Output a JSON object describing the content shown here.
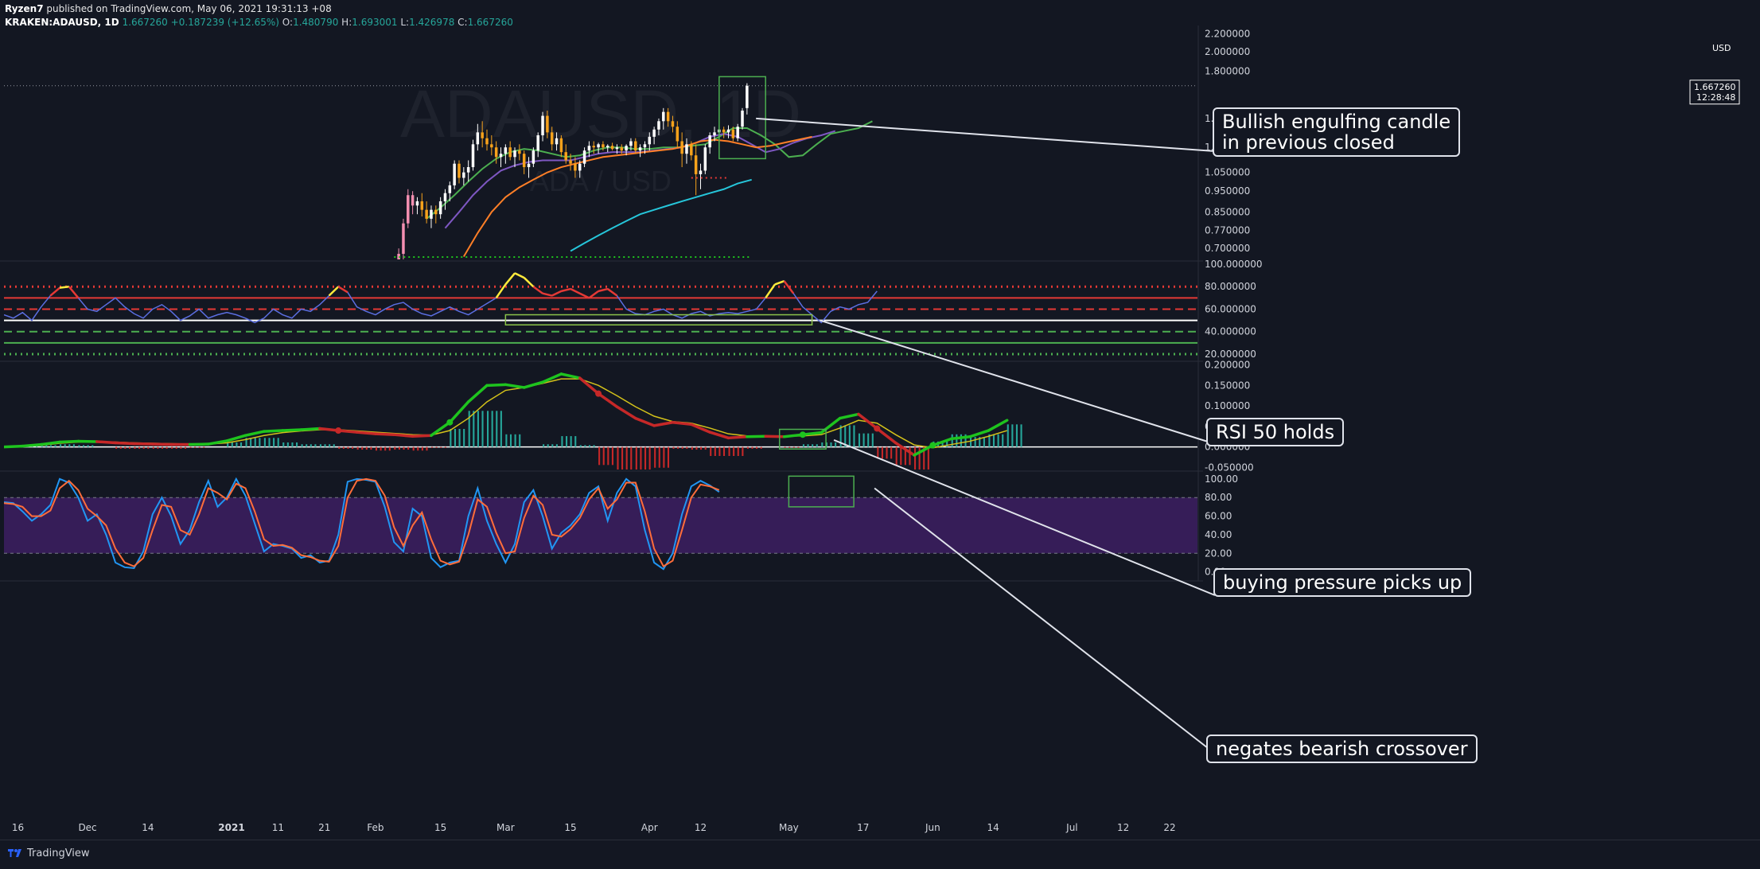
{
  "header": {
    "publisher": "Ryzen7",
    "published_text": "published on TradingView.com, May 06, 2021 19:31:13 +08",
    "symbol": "KRAKEN:ADAUSD, 1D",
    "last": "1.667260",
    "change": "+0.187239 (+12.65%)",
    "o_label": "O:",
    "o_value": "1.480790",
    "h_label": "H:",
    "h_value": "1.693001",
    "l_label": "L:",
    "l_value": "1.426978",
    "c_label": "C:",
    "c_value": "1.667260"
  },
  "watermark": {
    "main": "ADAUSD, 1D",
    "sub": "ADA / USD"
  },
  "price_axis": {
    "currency": "USD",
    "ticks": [
      "2.200000",
      "2.000000",
      "1.800000",
      "1.400000",
      "1.200000",
      "1.050000",
      "0.950000",
      "0.850000",
      "0.770000",
      "0.700000"
    ],
    "last_price_label": "1.667260",
    "countdown": "12:28:48"
  },
  "rsi_axis": {
    "ticks": [
      "100.000000",
      "80.000000",
      "60.000000",
      "40.000000",
      "20.000000"
    ]
  },
  "macd_axis": {
    "ticks": [
      "0.200000",
      "0.150000",
      "0.100000",
      "0.050000",
      "0.000000",
      "-0.050000"
    ]
  },
  "stoch_axis": {
    "ticks": [
      "100.00",
      "80.00",
      "60.00",
      "40.00",
      "20.00",
      "0.00"
    ]
  },
  "time_axis": {
    "ticks": [
      "16",
      "Dec",
      "14",
      "2021",
      "11",
      "21",
      "Feb",
      "15",
      "Mar",
      "15",
      "Apr",
      "12",
      "May",
      "17",
      "Jun",
      "14",
      "Jul",
      "12",
      "22"
    ]
  },
  "annotations": {
    "engulfing": [
      "Bullish engulfing candle",
      "in previous closed"
    ],
    "rsi": "RSI 50 holds",
    "macd": "buying pressure picks up",
    "stoch": "negates bearish crossover"
  },
  "footer": {
    "brand": "TradingView"
  },
  "colors": {
    "background": "#131722",
    "bull": "#ffffff",
    "bear": "#f7a21b",
    "ema_green": "#4caf50",
    "ema_purple": "#7e57c2",
    "ema_orange": "#ff7f27",
    "ema_cyan": "#26c6da",
    "rsi_line": "#5b6ee1",
    "macd_line": "#1ec41e",
    "signal_line": "#d4c21a",
    "stoch_k": "#2196f3",
    "stoch_d": "#ff6d3a",
    "stoch_band": "#3b1e5e"
  },
  "chart_data": [
    {
      "type": "candlestick",
      "title": "ADAUSD, 1D",
      "xlabel": "",
      "ylabel": "USD",
      "scale": "log",
      "ylim": [
        0.66,
        2.3
      ],
      "x_range": [
        "2020-11-13",
        "2021-07-28"
      ],
      "ohlc_daily_from": "2021-02-05",
      "ohlc": [
        [
          0.58,
          0.66,
          0.56,
          0.62
        ],
        [
          0.62,
          0.7,
          0.6,
          0.68
        ],
        [
          0.68,
          0.82,
          0.66,
          0.8
        ],
        [
          0.8,
          0.96,
          0.78,
          0.93
        ],
        [
          0.93,
          0.95,
          0.84,
          0.88
        ],
        [
          0.88,
          0.92,
          0.84,
          0.9
        ],
        [
          0.9,
          0.94,
          0.83,
          0.86
        ],
        [
          0.86,
          0.9,
          0.8,
          0.82
        ],
        [
          0.82,
          0.88,
          0.78,
          0.86
        ],
        [
          0.86,
          0.88,
          0.8,
          0.84
        ],
        [
          0.84,
          0.92,
          0.82,
          0.9
        ],
        [
          0.9,
          0.96,
          0.86,
          0.94
        ],
        [
          0.94,
          1.0,
          0.9,
          0.98
        ],
        [
          0.98,
          1.12,
          0.96,
          1.1
        ],
        [
          1.1,
          1.12,
          0.99,
          1.02
        ],
        [
          1.02,
          1.08,
          0.98,
          1.05
        ],
        [
          1.05,
          1.12,
          1.0,
          1.08
        ],
        [
          1.08,
          1.25,
          1.06,
          1.22
        ],
        [
          1.22,
          1.36,
          1.18,
          1.3
        ],
        [
          1.3,
          1.38,
          1.2,
          1.26
        ],
        [
          1.26,
          1.32,
          1.18,
          1.22
        ],
        [
          1.22,
          1.28,
          1.15,
          1.2
        ],
        [
          1.2,
          1.24,
          1.1,
          1.14
        ],
        [
          1.14,
          1.2,
          1.08,
          1.16
        ],
        [
          1.16,
          1.22,
          1.1,
          1.2
        ],
        [
          1.2,
          1.24,
          1.12,
          1.14
        ],
        [
          1.14,
          1.2,
          1.08,
          1.18
        ],
        [
          1.18,
          1.22,
          1.12,
          1.16
        ],
        [
          1.16,
          1.18,
          1.04,
          1.08
        ],
        [
          1.08,
          1.14,
          1.02,
          1.1
        ],
        [
          1.1,
          1.2,
          1.08,
          1.18
        ],
        [
          1.18,
          1.3,
          1.14,
          1.28
        ],
        [
          1.28,
          1.45,
          1.24,
          1.42
        ],
        [
          1.42,
          1.46,
          1.26,
          1.3
        ],
        [
          1.3,
          1.34,
          1.18,
          1.22
        ],
        [
          1.22,
          1.3,
          1.18,
          1.26
        ],
        [
          1.26,
          1.28,
          1.14,
          1.17
        ],
        [
          1.17,
          1.22,
          1.1,
          1.12
        ],
        [
          1.12,
          1.16,
          1.06,
          1.1
        ],
        [
          1.1,
          1.14,
          1.02,
          1.06
        ],
        [
          1.06,
          1.12,
          1.02,
          1.1
        ],
        [
          1.1,
          1.2,
          1.08,
          1.18
        ],
        [
          1.18,
          1.24,
          1.14,
          1.21
        ],
        [
          1.21,
          1.24,
          1.16,
          1.2
        ],
        [
          1.2,
          1.23,
          1.16,
          1.22
        ],
        [
          1.22,
          1.24,
          1.18,
          1.2
        ],
        [
          1.2,
          1.22,
          1.17,
          1.21
        ],
        [
          1.21,
          1.23,
          1.18,
          1.19
        ],
        [
          1.19,
          1.22,
          1.16,
          1.2
        ],
        [
          1.2,
          1.22,
          1.16,
          1.18
        ],
        [
          1.18,
          1.22,
          1.15,
          1.21
        ],
        [
          1.21,
          1.26,
          1.18,
          1.24
        ],
        [
          1.24,
          1.26,
          1.16,
          1.18
        ],
        [
          1.18,
          1.22,
          1.14,
          1.2
        ],
        [
          1.2,
          1.24,
          1.16,
          1.22
        ],
        [
          1.22,
          1.3,
          1.18,
          1.27
        ],
        [
          1.27,
          1.34,
          1.22,
          1.32
        ],
        [
          1.32,
          1.4,
          1.28,
          1.38
        ],
        [
          1.38,
          1.48,
          1.32,
          1.45
        ],
        [
          1.45,
          1.48,
          1.34,
          1.38
        ],
        [
          1.38,
          1.42,
          1.3,
          1.34
        ],
        [
          1.34,
          1.38,
          1.2,
          1.24
        ],
        [
          1.24,
          1.3,
          1.08,
          1.16
        ],
        [
          1.16,
          1.26,
          1.1,
          1.22
        ],
        [
          1.22,
          1.24,
          1.12,
          1.15
        ],
        [
          1.15,
          1.22,
          0.93,
          1.04
        ],
        [
          1.04,
          1.1,
          0.96,
          1.06
        ],
        [
          1.06,
          1.22,
          1.04,
          1.2
        ],
        [
          1.2,
          1.3,
          1.16,
          1.28
        ],
        [
          1.28,
          1.34,
          1.24,
          1.3
        ],
        [
          1.3,
          1.35,
          1.26,
          1.32
        ],
        [
          1.32,
          1.34,
          1.26,
          1.3
        ],
        [
          1.3,
          1.35,
          1.26,
          1.32
        ],
        [
          1.32,
          1.34,
          1.24,
          1.26
        ],
        [
          1.26,
          1.36,
          1.24,
          1.34
        ],
        [
          1.34,
          1.48,
          1.32,
          1.46
        ],
        [
          1.48,
          1.69,
          1.43,
          1.667
        ]
      ],
      "ema_series": [
        {
          "name": "",
          "color": "#4caf50",
          "start": "2021-02-12",
          "values": [
            0.82,
            0.87,
            0.93,
            1.0,
            1.07,
            1.13,
            1.17,
            1.19,
            1.18,
            1.16,
            1.14,
            1.15,
            1.18,
            1.2,
            1.2,
            1.19,
            1.19,
            1.2,
            1.2,
            1.21,
            1.22,
            1.27,
            1.33,
            1.33,
            1.28,
            1.22,
            1.14,
            1.15,
            1.22,
            1.29,
            1.31,
            1.33,
            1.38
          ]
        },
        {
          "name": "",
          "color": "#7e57c2",
          "start": "2021-02-16",
          "values": [
            0.78,
            0.85,
            0.93,
            1.0,
            1.06,
            1.09,
            1.11,
            1.12,
            1.12,
            1.12,
            1.14,
            1.16,
            1.17,
            1.17,
            1.17,
            1.18,
            1.19,
            1.2,
            1.23,
            1.27,
            1.29,
            1.27,
            1.22,
            1.17,
            1.19,
            1.23,
            1.26,
            1.28,
            1.31
          ]
        },
        {
          "name": "",
          "color": "#ff7f27",
          "start": "2021-02-20",
          "values": [
            0.67,
            0.76,
            0.85,
            0.92,
            0.97,
            1.01,
            1.05,
            1.08,
            1.1,
            1.12,
            1.14,
            1.15,
            1.16,
            1.17,
            1.18,
            1.19,
            1.21,
            1.24,
            1.25,
            1.24,
            1.22,
            1.2,
            1.21,
            1.23,
            1.25,
            1.27
          ]
        },
        {
          "name": "",
          "color": "#26c6da",
          "start": "2021-03-15",
          "values": [
            0.69,
            0.72,
            0.75,
            0.78,
            0.81,
            0.84,
            0.86,
            0.88,
            0.9,
            0.92,
            0.94,
            0.96,
            0.99,
            1.01
          ]
        }
      ],
      "horizontal_levels": [
        {
          "value": 1.66726,
          "style": "dotted"
        }
      ]
    },
    {
      "type": "line",
      "title": "",
      "xlabel": "",
      "ylabel": "",
      "ylim": [
        15,
        100
      ],
      "x_range": [
        "2020-11-13",
        "2021-07-28"
      ],
      "levels": [
        80,
        70,
        60,
        50,
        40,
        30,
        20
      ],
      "series": [
        {
          "name": "",
          "color": "#5b6ee1",
          "start": "2020-11-13",
          "step_days": 2,
          "values": [
            55,
            52,
            57,
            50,
            62,
            72,
            79,
            80,
            70,
            60,
            58,
            64,
            70,
            62,
            56,
            52,
            60,
            64,
            58,
            50,
            54,
            60,
            52,
            55,
            57,
            55,
            52,
            48,
            52,
            60,
            55,
            52,
            60,
            58,
            64,
            72,
            80,
            75,
            62,
            58,
            55,
            60,
            64,
            66,
            60,
            56,
            54,
            58,
            62,
            58,
            55,
            60,
            65,
            70,
            82,
            92,
            88,
            80,
            74,
            72,
            76,
            78,
            74,
            70,
            76,
            78,
            72,
            60,
            56,
            55,
            58,
            60,
            55,
            52,
            56,
            58,
            54,
            56,
            57,
            56,
            58,
            60,
            70,
            82,
            85,
            74,
            62,
            55,
            48,
            58,
            62,
            60,
            64,
            66,
            76
          ]
        }
      ]
    },
    {
      "type": "line",
      "title": "",
      "xlabel": "",
      "ylabel": "",
      "ylim": [
        -0.055,
        0.205
      ],
      "x_range": [
        "2020-11-13",
        "2021-07-28"
      ],
      "series": [
        {
          "name": "",
          "color": "#1ec41e",
          "start": "2020-11-13",
          "step_days": 4,
          "values": [
            0,
            0.002,
            0.006,
            0.012,
            0.014,
            0.013,
            0.01,
            0.008,
            0.007,
            0.006,
            0.006,
            0.007,
            0.015,
            0.028,
            0.038,
            0.04,
            0.042,
            0.045,
            0.04,
            0.036,
            0.032,
            0.03,
            0.026,
            0.028,
            0.06,
            0.11,
            0.15,
            0.152,
            0.145,
            0.158,
            0.178,
            0.168,
            0.13,
            0.098,
            0.07,
            0.052,
            0.06,
            0.055,
            0.036,
            0.022,
            0.025,
            0.026,
            0.025,
            0.03,
            0.035,
            0.07,
            0.08,
            0.045,
            0.01,
            -0.02,
            0.004,
            0.02,
            0.025,
            0.04,
            0.065
          ]
        },
        {
          "name": "",
          "color": "#d4c21a",
          "start": "2020-11-13",
          "step_days": 4,
          "values": [
            0,
            0.001,
            0.004,
            0.009,
            0.012,
            0.013,
            0.012,
            0.01,
            0.009,
            0.008,
            0.007,
            0.007,
            0.01,
            0.018,
            0.028,
            0.035,
            0.039,
            0.042,
            0.042,
            0.039,
            0.036,
            0.033,
            0.03,
            0.029,
            0.04,
            0.07,
            0.11,
            0.138,
            0.145,
            0.155,
            0.166,
            0.166,
            0.15,
            0.125,
            0.098,
            0.075,
            0.062,
            0.058,
            0.046,
            0.032,
            0.027,
            0.026,
            0.026,
            0.027,
            0.03,
            0.046,
            0.065,
            0.058,
            0.03,
            0.005,
            -0.002,
            0.006,
            0.014,
            0.026,
            0.04
          ]
        }
      ]
    },
    {
      "type": "line",
      "title": "",
      "xlabel": "",
      "ylabel": "",
      "ylim": [
        -8,
        105
      ],
      "x_range": [
        "2020-11-13",
        "2021-07-28"
      ],
      "band": [
        20,
        80
      ],
      "series": [
        {
          "name": "",
          "color": "#2196f3",
          "start": "2020-11-13",
          "step_days": 2,
          "values": [
            75,
            74,
            65,
            55,
            62,
            72,
            100,
            96,
            80,
            55,
            62,
            40,
            10,
            5,
            4,
            22,
            62,
            80,
            60,
            30,
            45,
            75,
            98,
            70,
            80,
            100,
            82,
            52,
            22,
            30,
            28,
            25,
            15,
            18,
            10,
            12,
            40,
            97,
            100,
            99,
            97,
            70,
            32,
            22,
            68,
            60,
            15,
            5,
            10,
            12,
            60,
            90,
            55,
            30,
            10,
            30,
            75,
            88,
            60,
            25,
            42,
            50,
            62,
            85,
            92,
            55,
            85,
            100,
            92,
            45,
            10,
            3,
            20,
            62,
            92,
            98,
            93,
            86
          ]
        },
        {
          "name": "",
          "color": "#ff6d3a",
          "start": "2020-11-13",
          "step_days": 2,
          "values": [
            74,
            73,
            70,
            60,
            60,
            66,
            90,
            98,
            88,
            68,
            60,
            50,
            25,
            10,
            6,
            15,
            45,
            72,
            70,
            45,
            40,
            62,
            90,
            85,
            78,
            95,
            90,
            65,
            35,
            28,
            29,
            26,
            18,
            16,
            12,
            11,
            28,
            80,
            98,
            100,
            98,
            82,
            48,
            28,
            50,
            64,
            35,
            12,
            8,
            11,
            40,
            78,
            70,
            42,
            20,
            22,
            58,
            82,
            72,
            40,
            38,
            46,
            58,
            78,
            90,
            68,
            78,
            96,
            96,
            65,
            25,
            6,
            12,
            45,
            80,
            94,
            92,
            88
          ]
        }
      ]
    }
  ]
}
